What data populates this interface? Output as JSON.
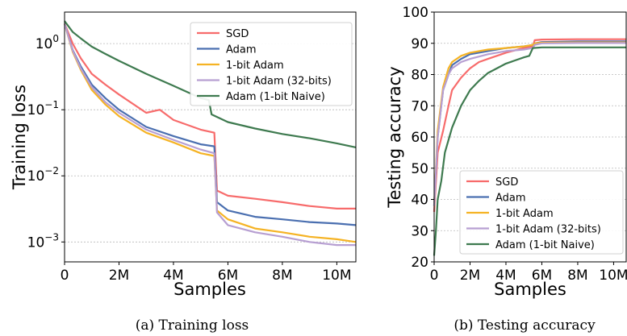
{
  "colors": {
    "SGD": "#f76b6b",
    "Adam": "#4a6fb0",
    "1-bit Adam": "#f5b324",
    "1-bit Adam (32-bits)": "#b79fd2",
    "Adam (1-bit Naive)": "#3e7a4f"
  },
  "chart_data": [
    {
      "type": "line",
      "caption": "(a) Training loss",
      "xlabel": "Samples",
      "ylabel": "Training loss",
      "xlim": [
        0,
        10.7
      ],
      "xscale": "linear",
      "yscale": "log",
      "ylim": [
        0.0005,
        3
      ],
      "x_ticks": [
        0,
        2,
        4,
        6,
        8,
        10
      ],
      "x_tick_labels": [
        "0",
        "2M",
        "4M",
        "6M",
        "8M",
        "10M"
      ],
      "y_ticks": [
        0.001,
        0.01,
        0.1,
        1
      ],
      "y_tick_labels": [
        {
          "base": "10",
          "exp": "−3"
        },
        {
          "base": "10",
          "exp": "−2"
        },
        {
          "base": "10",
          "exp": "−1"
        },
        {
          "base": "10",
          "exp": "0"
        }
      ],
      "grid": "horizontal dashed",
      "legend_position": "upper-right",
      "series": [
        {
          "name": "SGD",
          "x": [
            0,
            0.3,
            0.6,
            1,
            1.5,
            2,
            3,
            3.5,
            4,
            5,
            5.5,
            5.6,
            6,
            7,
            8,
            9,
            10,
            10.7
          ],
          "y": [
            2.0,
            1.0,
            0.6,
            0.35,
            0.24,
            0.17,
            0.09,
            0.1,
            0.07,
            0.05,
            0.045,
            0.006,
            0.005,
            0.0045,
            0.004,
            0.0035,
            0.0032,
            0.0032
          ]
        },
        {
          "name": "Adam",
          "x": [
            0,
            0.3,
            0.6,
            1,
            1.5,
            2,
            3,
            4,
            5,
            5.5,
            5.6,
            6,
            7,
            8,
            9,
            10,
            10.7
          ],
          "y": [
            2.0,
            0.8,
            0.45,
            0.24,
            0.15,
            0.1,
            0.055,
            0.04,
            0.03,
            0.028,
            0.004,
            0.003,
            0.0024,
            0.0022,
            0.002,
            0.0019,
            0.0018
          ]
        },
        {
          "name": "1-bit Adam",
          "x": [
            0,
            0.3,
            0.6,
            1,
            1.5,
            2,
            3,
            4,
            5,
            5.5,
            5.6,
            6,
            7,
            8,
            9,
            10,
            10.7
          ],
          "y": [
            2.0,
            0.75,
            0.4,
            0.2,
            0.12,
            0.08,
            0.045,
            0.032,
            0.022,
            0.02,
            0.003,
            0.0022,
            0.0016,
            0.0014,
            0.0012,
            0.0011,
            0.001
          ]
        },
        {
          "name": "1-bit Adam (32-bits)",
          "x": [
            0,
            0.3,
            0.6,
            1,
            1.5,
            2,
            3,
            4,
            5,
            5.5,
            5.6,
            6,
            7,
            8,
            9,
            10,
            10.7
          ],
          "y": [
            2.0,
            0.78,
            0.42,
            0.22,
            0.13,
            0.09,
            0.05,
            0.035,
            0.025,
            0.022,
            0.0028,
            0.0018,
            0.0014,
            0.0012,
            0.001,
            0.0009,
            0.0009
          ]
        },
        {
          "name": "Adam (1-bit Naive)",
          "x": [
            0,
            0.3,
            0.6,
            1,
            1.5,
            2,
            3,
            4,
            5,
            5.3,
            5.4,
            6,
            7,
            8,
            9,
            10,
            10.7
          ],
          "y": [
            2.2,
            1.5,
            1.2,
            0.9,
            0.7,
            0.55,
            0.35,
            0.23,
            0.15,
            0.14,
            0.085,
            0.065,
            0.052,
            0.043,
            0.037,
            0.031,
            0.027
          ]
        }
      ]
    },
    {
      "type": "line",
      "caption": "(b) Testing accuracy",
      "xlabel": "Samples",
      "ylabel": "Testing accuracy",
      "xlim": [
        0,
        10.7
      ],
      "ylim": [
        20,
        100
      ],
      "x_ticks": [
        0,
        2,
        4,
        6,
        8,
        10
      ],
      "x_tick_labels": [
        "0",
        "2M",
        "4M",
        "6M",
        "8M",
        "10M"
      ],
      "y_ticks": [
        20,
        30,
        40,
        50,
        60,
        70,
        80,
        90,
        100
      ],
      "y_tick_labels": [
        "20",
        "30",
        "40",
        "50",
        "60",
        "70",
        "80",
        "90",
        "100"
      ],
      "grid": "horizontal dashed",
      "legend_position": "lower-right",
      "series": [
        {
          "name": "SGD",
          "x": [
            0,
            0.2,
            0.5,
            0.8,
            1,
            1.5,
            2,
            2.5,
            3,
            4,
            5,
            5.5,
            5.6,
            6,
            8,
            10,
            10.7
          ],
          "y": [
            36,
            55,
            62,
            70,
            75,
            79,
            82,
            84,
            85,
            87,
            88.5,
            89,
            91,
            91.2,
            91.3,
            91.3,
            91.3
          ]
        },
        {
          "name": "Adam",
          "x": [
            0,
            0.2,
            0.5,
            0.8,
            1,
            1.5,
            2,
            3,
            4,
            5,
            5.5,
            5.6,
            6,
            8,
            10,
            10.7
          ],
          "y": [
            38,
            60,
            75,
            80,
            83,
            85,
            86.5,
            87.5,
            88.5,
            89,
            89.5,
            90,
            90.4,
            90.6,
            90.6,
            90.6
          ]
        },
        {
          "name": "1-bit Adam",
          "x": [
            0,
            0.2,
            0.5,
            0.8,
            1,
            1.5,
            2,
            3,
            4,
            5,
            5.5,
            5.6,
            6,
            8,
            10,
            10.7
          ],
          "y": [
            38,
            62,
            76,
            82,
            84,
            86,
            87,
            88,
            88.5,
            89,
            89.5,
            90,
            90.2,
            90.3,
            90.3,
            90.3
          ]
        },
        {
          "name": "1-bit Adam (32-bits)",
          "x": [
            0,
            0.2,
            0.5,
            0.8,
            1,
            1.5,
            2,
            3,
            4,
            5,
            5.5,
            5.6,
            6,
            8,
            10,
            10.7
          ],
          "y": [
            38,
            60,
            75,
            80,
            82,
            84,
            85,
            86.5,
            87.5,
            88,
            88.5,
            89.5,
            90,
            90.1,
            90.1,
            90.1
          ]
        },
        {
          "name": "Adam (1-bit Naive)",
          "x": [
            0,
            0.1,
            0.2,
            0.4,
            0.6,
            1,
            1.5,
            2,
            2.5,
            3,
            4,
            5,
            5.3,
            5.5,
            6,
            8,
            10,
            10.7
          ],
          "y": [
            22,
            30,
            40,
            46,
            55,
            63,
            70,
            75,
            78,
            80.5,
            83.5,
            85.5,
            86,
            88.5,
            88.7,
            88.7,
            88.7,
            88.7
          ]
        }
      ]
    }
  ]
}
